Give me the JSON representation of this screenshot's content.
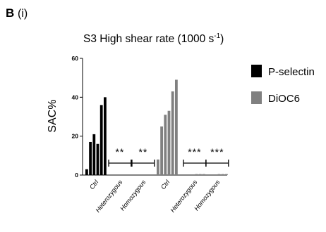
{
  "panel": {
    "letter": "B",
    "sub": "(i)"
  },
  "chart_data": {
    "type": "bar",
    "title": "S3 High shear rate (1000 s",
    "title_sup": "-1",
    "title_close": ")",
    "ylabel": "SAC%",
    "xlabel": "",
    "ylim": [
      0,
      60
    ],
    "yticks": [
      "0",
      "20",
      "40",
      "60"
    ],
    "groups": [
      {
        "label": "Ctrl",
        "series": "P-selectin",
        "values": [
          3,
          17,
          21,
          16,
          36,
          40
        ]
      },
      {
        "label": "Heterozygous",
        "series": "P-selectin",
        "values": [
          0,
          0,
          0,
          0,
          0,
          0
        ],
        "significance": "**"
      },
      {
        "label": "Homozygous",
        "series": "P-selectin",
        "values": [
          0,
          0,
          0,
          0,
          0,
          0
        ],
        "significance": "**"
      },
      {
        "label": "Ctrl",
        "series": "DiOC6",
        "values": [
          8,
          25,
          31,
          33,
          43,
          49
        ]
      },
      {
        "label": "Heterozygous",
        "series": "DiOC6",
        "values": [
          0,
          0,
          0,
          0.5,
          0.5,
          0.5
        ],
        "significance": "***"
      },
      {
        "label": "Homozygous",
        "series": "DiOC6",
        "values": [
          0,
          0,
          0,
          0.5,
          0.5,
          0.5
        ],
        "significance": "***"
      }
    ],
    "legend": [
      {
        "name": "P-selectin",
        "color": "#000000"
      },
      {
        "name": "DiOC6",
        "color": "#808080"
      }
    ],
    "legend_position": "right",
    "grid": false
  }
}
